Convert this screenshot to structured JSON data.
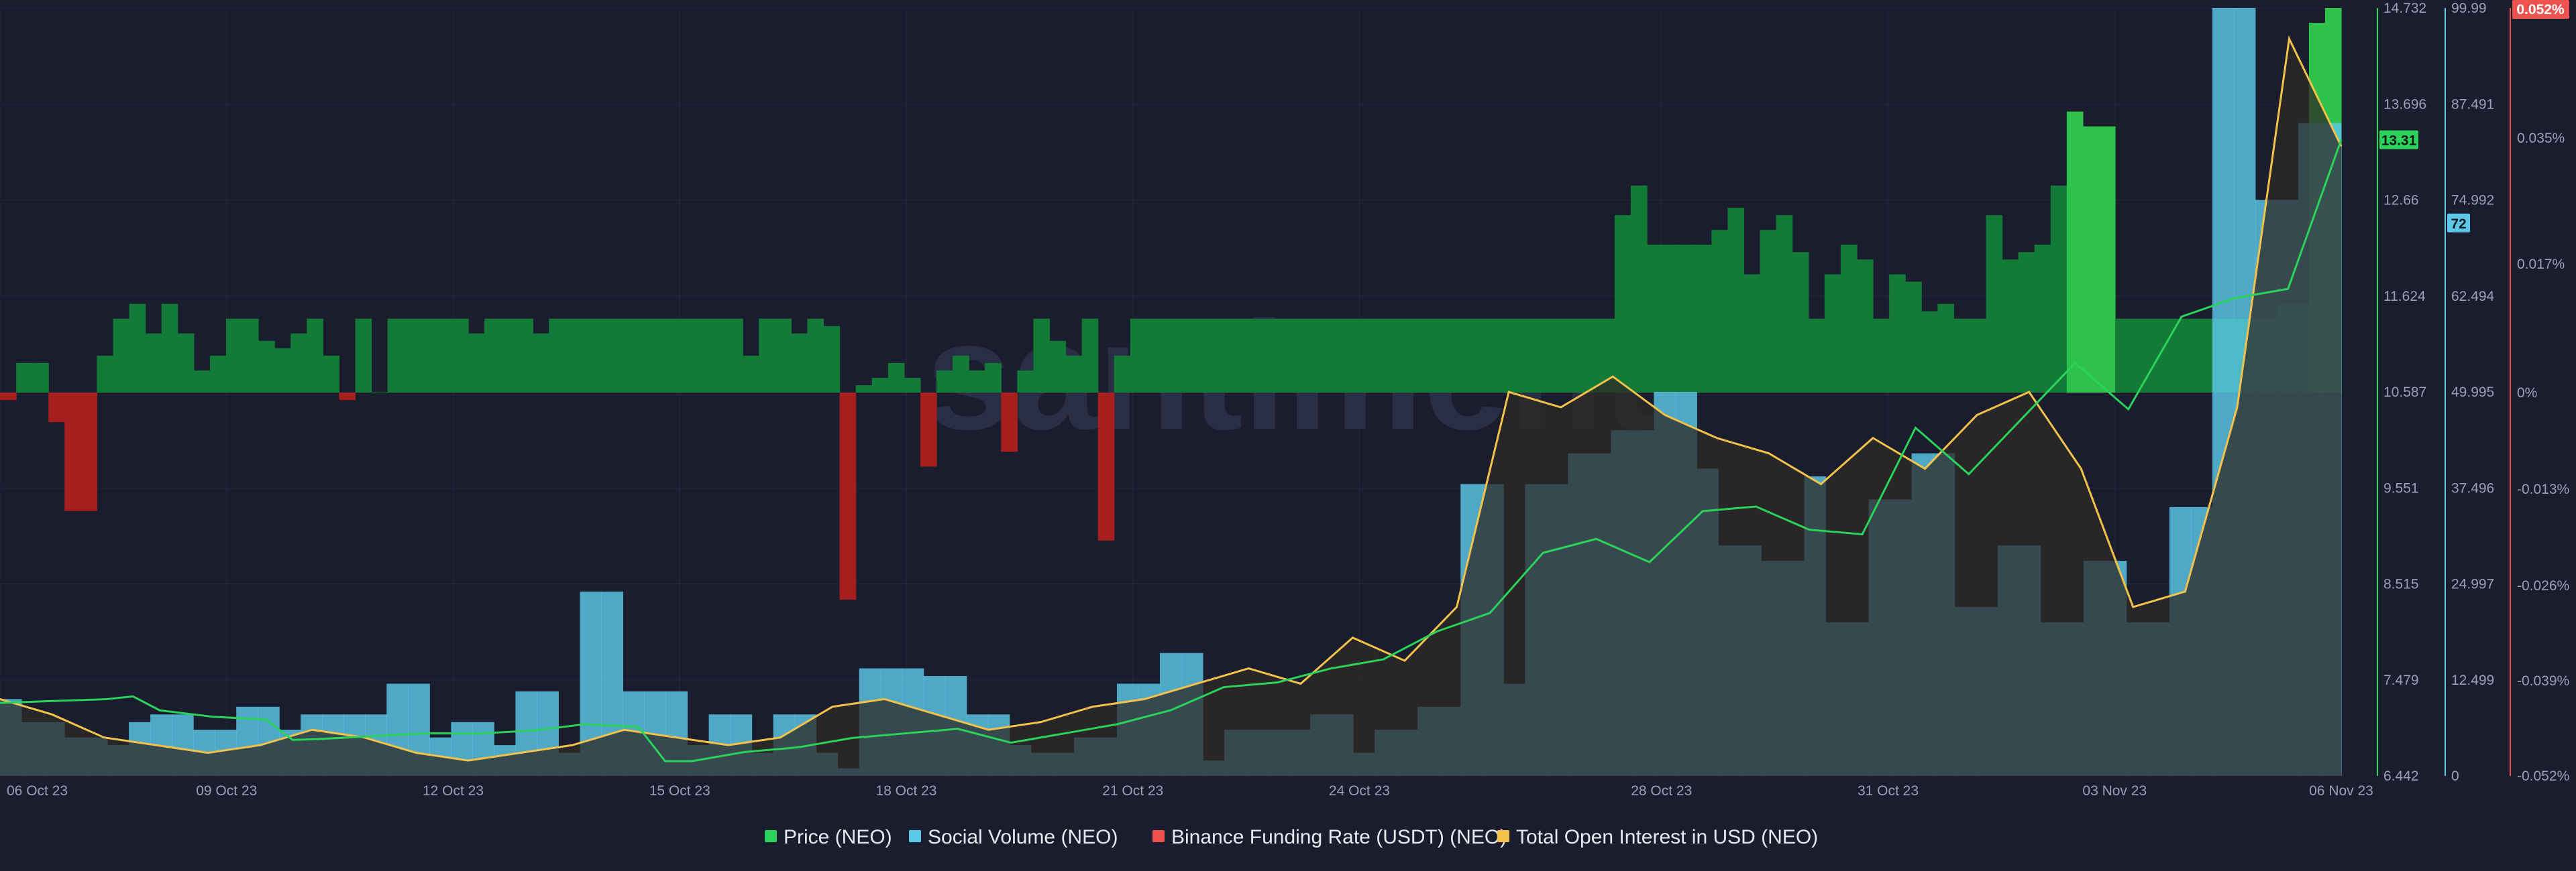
{
  "watermark": "santiment",
  "colors": {
    "background": "#1a1d2e",
    "price": "#2bd35a",
    "social": "#5cc8e8",
    "funding_pos": "#137a38",
    "funding_neg": "#a61e1e",
    "funding_legend": "#ef5350",
    "open_interest": "#f2c24a",
    "funding_axis": "#ef5350",
    "price_axis": "#2bd35a",
    "social_axis": "#5cc8e8"
  },
  "axes": {
    "price_ticks": [
      "14.732",
      "13.696",
      "12.66",
      "11.624",
      "10.587",
      "9.551",
      "8.515",
      "7.479",
      "6.442"
    ],
    "social_ticks": [
      "99.99",
      "87.491",
      "74.992",
      "62.494",
      "49.995",
      "37.496",
      "24.997",
      "12.499",
      "0"
    ],
    "funding_ticks": [
      "0.052%",
      "0.035%",
      "0.017%",
      "0%",
      "-0.013%",
      "-0.026%",
      "-0.039%",
      "-0.052%"
    ],
    "x_ticks": [
      "06 Oct 23",
      "09 Oct 23",
      "12 Oct 23",
      "15 Oct 23",
      "18 Oct 23",
      "21 Oct 23",
      "24 Oct 23",
      "28 Oct 23",
      "31 Oct 23",
      "03 Nov 23",
      "06 Nov 23"
    ]
  },
  "badges": {
    "price_current": "13.31",
    "social_current": "72",
    "funding_current": "0.052%"
  },
  "legend": [
    {
      "label": "Price (NEO)",
      "color": "#2bd35a"
    },
    {
      "label": "Social Volume (NEO)",
      "color": "#5cc8e8"
    },
    {
      "label": "Binance Funding Rate (USDT) (NEO)",
      "color": "#ef5350"
    },
    {
      "label": "Total Open Interest in USD (NEO)",
      "color": "#f2c24a"
    }
  ],
  "chart_data": {
    "type": "bar",
    "x_range": [
      "06 Oct 23",
      "06 Nov 23"
    ],
    "axes_ranges": {
      "price": [
        6.442,
        14.732
      ],
      "social_volume": [
        0,
        99.99
      ],
      "funding_rate_pct": [
        -0.052,
        0.052
      ]
    },
    "series": [
      {
        "name": "Social Volume (NEO)",
        "type": "bar",
        "values": [
          10,
          7,
          7,
          5,
          5,
          4,
          7,
          8,
          8,
          6,
          6,
          9,
          9,
          6,
          8,
          8,
          8,
          8,
          12,
          12,
          5,
          7,
          7,
          4,
          11,
          11,
          3,
          24,
          24,
          11,
          11,
          11,
          4,
          8,
          8,
          3,
          8,
          8,
          3,
          1,
          14,
          14,
          14,
          13,
          13,
          8,
          8,
          4,
          3,
          3,
          5,
          5,
          12,
          12,
          16,
          16,
          2,
          6,
          6,
          6,
          6,
          8,
          8,
          3,
          6,
          6,
          9,
          9,
          38,
          38,
          12,
          38,
          38,
          42,
          42,
          45,
          45,
          50,
          50,
          40,
          30,
          30,
          28,
          28,
          39,
          20,
          20,
          36,
          36,
          42,
          42,
          22,
          22,
          30,
          30,
          20,
          20,
          28,
          28,
          20,
          20,
          35,
          35,
          100,
          100,
          75,
          75,
          85,
          85
        ],
        "samples_per_day": 3.5
      },
      {
        "name": "Binance Funding Rate (USDT) (NEO)",
        "type": "bar",
        "values_pct": [
          -0.001,
          0.004,
          0.004,
          -0.004,
          -0.016,
          -0.016,
          0.005,
          0.01,
          0.012,
          0.008,
          0.012,
          0.008,
          0.003,
          0.005,
          0.01,
          0.01,
          0.007,
          0.006,
          0.008,
          0.01,
          0.005,
          -0.001,
          0.01,
          0.0,
          0.01,
          0.01,
          0.01,
          0.01,
          0.01,
          0.008,
          0.01,
          0.01,
          0.01,
          0.008,
          0.01,
          0.01,
          0.01,
          0.01,
          0.01,
          0.01,
          0.01,
          0.01,
          0.01,
          0.01,
          0.01,
          0.01,
          0.005,
          0.01,
          0.01,
          0.008,
          0.01,
          0.009,
          -0.028,
          0.001,
          0.002,
          0.004,
          0.002,
          -0.01,
          0.003,
          0.005,
          0.003,
          0.004,
          -0.008,
          0.003,
          0.01,
          0.007,
          0.005,
          0.01,
          -0.02,
          0.005,
          0.01,
          0.01,
          0.01,
          0.01,
          0.01,
          0.01,
          0.01,
          0.01,
          0.01,
          0.01,
          0.01,
          0.01,
          0.01,
          0.01,
          0.01,
          0.01,
          0.01,
          0.01,
          0.01,
          0.01,
          0.01,
          0.01,
          0.01,
          0.01,
          0.01,
          0.01,
          0.01,
          0.01,
          0.01,
          0.01,
          0.024,
          0.028,
          0.02,
          0.02,
          0.02,
          0.02,
          0.022,
          0.025,
          0.016,
          0.022,
          0.024,
          0.019,
          0.01,
          0.016,
          0.02,
          0.018,
          0.01,
          0.016,
          0.015,
          0.011,
          0.012,
          0.01,
          0.01,
          0.024,
          0.018,
          0.019,
          0.02,
          0.028,
          0.038,
          0.036,
          0.036,
          0.01,
          0.01,
          0.01,
          0.01,
          0.01,
          0.01,
          0.01,
          0.01,
          0.01,
          0.01,
          0.012,
          0.012,
          0.05,
          0.052
        ],
        "samples_per_day": 4.5
      },
      {
        "name": "Price (NEO)",
        "type": "line",
        "points": [
          [
            0,
            7.23
          ],
          [
            1,
            7.25
          ],
          [
            2,
            7.27
          ],
          [
            2.5,
            7.3
          ],
          [
            3,
            7.15
          ],
          [
            4,
            7.08
          ],
          [
            5,
            7.05
          ],
          [
            5.5,
            6.83
          ],
          [
            6,
            6.84
          ],
          [
            7,
            6.87
          ],
          [
            8,
            6.9
          ],
          [
            9,
            6.9
          ],
          [
            10,
            6.93
          ],
          [
            11,
            7.0
          ],
          [
            12,
            6.97
          ],
          [
            12.5,
            6.6
          ],
          [
            13,
            6.6
          ],
          [
            14,
            6.7
          ],
          [
            15,
            6.75
          ],
          [
            16,
            6.85
          ],
          [
            17,
            6.9
          ],
          [
            18,
            6.95
          ],
          [
            19,
            6.8
          ],
          [
            20,
            6.9
          ],
          [
            21,
            7.0
          ],
          [
            22,
            7.15
          ],
          [
            23,
            7.4
          ],
          [
            24,
            7.45
          ],
          [
            25,
            7.6
          ],
          [
            26,
            7.7
          ],
          [
            27,
            8.0
          ],
          [
            28,
            8.2
          ],
          [
            29,
            8.85
          ],
          [
            30,
            9.0
          ],
          [
            31,
            8.75
          ],
          [
            32,
            9.3
          ],
          [
            33,
            9.35
          ],
          [
            34,
            9.1
          ],
          [
            35,
            9.05
          ],
          [
            36,
            10.2
          ],
          [
            37,
            9.7
          ],
          [
            38,
            10.3
          ],
          [
            39,
            10.9
          ],
          [
            40,
            10.4
          ],
          [
            41,
            11.4
          ],
          [
            42,
            11.6
          ],
          [
            43,
            11.7
          ],
          [
            44,
            13.31
          ]
        ]
      },
      {
        "name": "Total Open Interest in USD (NEO)",
        "type": "line",
        "points": [
          [
            0,
            0.1
          ],
          [
            1,
            0.08
          ],
          [
            2,
            0.05
          ],
          [
            3,
            0.04
          ],
          [
            4,
            0.03
          ],
          [
            5,
            0.04
          ],
          [
            6,
            0.06
          ],
          [
            7,
            0.05
          ],
          [
            8,
            0.03
          ],
          [
            9,
            0.02
          ],
          [
            10,
            0.03
          ],
          [
            11,
            0.04
          ],
          [
            12,
            0.06
          ],
          [
            13,
            0.05
          ],
          [
            14,
            0.04
          ],
          [
            15,
            0.05
          ],
          [
            16,
            0.09
          ],
          [
            17,
            0.1
          ],
          [
            18,
            0.08
          ],
          [
            19,
            0.06
          ],
          [
            20,
            0.07
          ],
          [
            21,
            0.09
          ],
          [
            22,
            0.1
          ],
          [
            23,
            0.12
          ],
          [
            24,
            0.14
          ],
          [
            25,
            0.12
          ],
          [
            26,
            0.18
          ],
          [
            27,
            0.15
          ],
          [
            28,
            0.22
          ],
          [
            29,
            0.5
          ],
          [
            30,
            0.48
          ],
          [
            31,
            0.52
          ],
          [
            32,
            0.47
          ],
          [
            33,
            0.44
          ],
          [
            34,
            0.42
          ],
          [
            35,
            0.38
          ],
          [
            36,
            0.44
          ],
          [
            37,
            0.4
          ],
          [
            38,
            0.47
          ],
          [
            39,
            0.5
          ],
          [
            40,
            0.4
          ],
          [
            41,
            0.22
          ],
          [
            42,
            0.24
          ],
          [
            43,
            0.48
          ],
          [
            44,
            0.96
          ],
          [
            45,
            0.82
          ]
        ],
        "unit": "relative"
      }
    ]
  }
}
